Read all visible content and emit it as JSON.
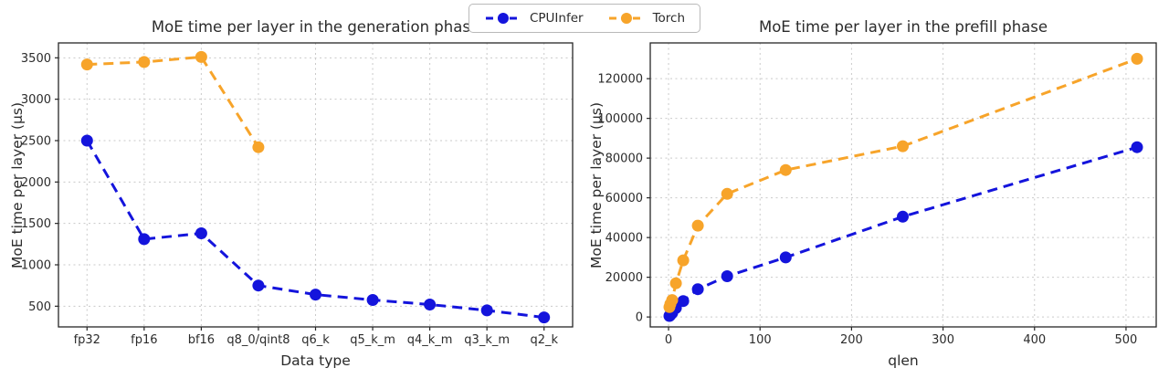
{
  "legend": {
    "items": [
      {
        "label": "CPUInfer",
        "color": "#1414dc"
      },
      {
        "label": "Torch",
        "color": "#f7a42a"
      }
    ]
  },
  "colors": {
    "cpuinfer": "#1414dc",
    "torch": "#f7a42a",
    "grid": "#c9c9c9",
    "spine": "#262626"
  },
  "chart_data": [
    {
      "type": "line",
      "title": "MoE time per layer in the generation phase",
      "xlabel": "Data type",
      "ylabel": "MoE time per layer (µs)",
      "categories": [
        "fp32",
        "fp16",
        "bf16",
        "q8_0/qint8",
        "q6_k",
        "q5_k_m",
        "q4_k_m",
        "q3_k_m",
        "q2_k"
      ],
      "yticks": [
        500,
        1000,
        1500,
        2000,
        2500,
        3000,
        3500
      ],
      "ylim": [
        250,
        3680
      ],
      "grid": true,
      "line_style": "dashed",
      "series": [
        {
          "name": "CPUInfer",
          "color": "#1414dc",
          "values": [
            2500,
            1310,
            1380,
            750,
            640,
            575,
            520,
            450,
            365
          ]
        },
        {
          "name": "Torch",
          "color": "#f7a42a",
          "values": [
            3420,
            3450,
            3510,
            2420,
            null,
            null,
            null,
            null,
            null
          ]
        }
      ]
    },
    {
      "type": "line",
      "title": "MoE time per layer in the prefill phase",
      "xlabel": "qlen",
      "ylabel": "MoE time per layer (µs)",
      "x": [
        1,
        2,
        4,
        8,
        16,
        32,
        64,
        128,
        256,
        512
      ],
      "xticks": [
        0,
        100,
        200,
        300,
        400,
        500
      ],
      "xlim": [
        -20,
        533
      ],
      "yticks": [
        0,
        20000,
        40000,
        60000,
        80000,
        100000,
        120000
      ],
      "ylim": [
        -5000,
        138000
      ],
      "grid": true,
      "line_style": "dashed",
      "series": [
        {
          "name": "CPUInfer",
          "color": "#1414dc",
          "values": [
            500,
            1000,
            2000,
            4500,
            8000,
            14000,
            20500,
            30000,
            50500,
            85500
          ]
        },
        {
          "name": "Torch",
          "color": "#f7a42a",
          "values": [
            5000,
            6500,
            8500,
            17000,
            28500,
            46000,
            62000,
            74000,
            86000,
            130000
          ]
        }
      ]
    }
  ]
}
